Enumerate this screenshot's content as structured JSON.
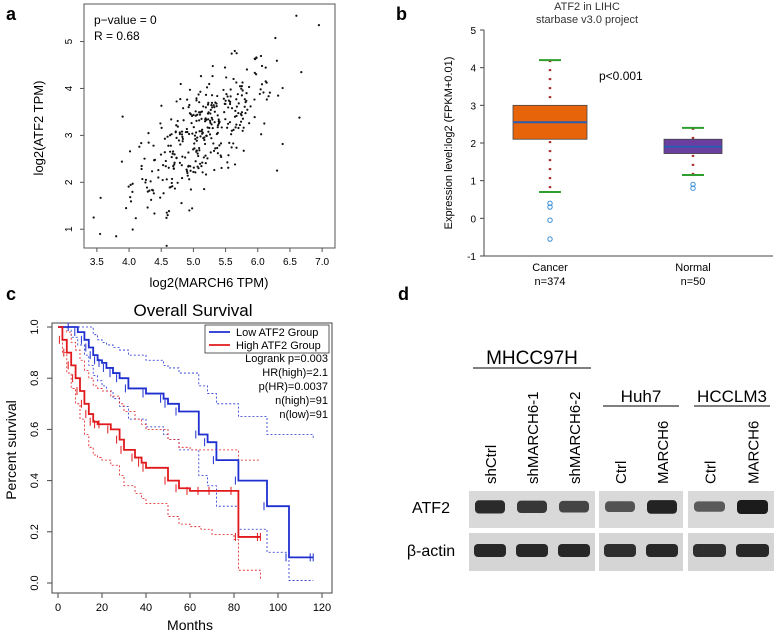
{
  "panels": {
    "a": {
      "letter": "a"
    },
    "b": {
      "letter": "b"
    },
    "c": {
      "letter": "c"
    },
    "d": {
      "letter": "d"
    }
  },
  "chart_data": [
    {
      "type": "scatter",
      "id": "a",
      "xlabel": "log2(MARCH6 TPM)",
      "ylabel": "log2(ATF2 TPM)",
      "xlim": [
        3.3,
        7.2
      ],
      "ylim": [
        0.6,
        5.8
      ],
      "xticks": [
        "3.5",
        "4.0",
        "4.5",
        "5.0",
        "5.5",
        "6.0",
        "6.5",
        "7.0"
      ],
      "yticks": [
        "1",
        "2",
        "3",
        "4",
        "5"
      ],
      "annotations": [
        "p−value = 0",
        "R = 0.68"
      ],
      "n_points": 371,
      "correlation": 0.68,
      "x_mean": 5.15,
      "y_mean": 3.05,
      "outliers": [
        [
          3.45,
          1.25
        ],
        [
          3.55,
          0.9
        ],
        [
          3.8,
          0.85
        ],
        [
          6.6,
          5.55
        ],
        [
          6.95,
          5.35
        ],
        [
          3.9,
          3.4
        ],
        [
          4.6,
          1.3
        ],
        [
          6.3,
          2.25
        ]
      ]
    },
    {
      "type": "box",
      "id": "b",
      "title": "ATF2 in LIHC",
      "subtitle": "starbase v3.0 project",
      "ylabel": "Expression level:log2 (FPKM+0.01)",
      "ylim": [
        -1,
        5
      ],
      "yticks": [
        "-1",
        "0",
        "1",
        "2",
        "3",
        "4",
        "5"
      ],
      "annotation": "p<0.001",
      "groups": [
        {
          "name": "Cancer",
          "n_label": "n=374",
          "whisker_low": 0.7,
          "q1": 2.1,
          "median": 2.55,
          "q3": 3.0,
          "whisker_high": 4.2,
          "outliers": [
            0.4,
            0.3,
            -0.05,
            -0.55
          ],
          "color": "#e8640b"
        },
        {
          "name": "Normal",
          "n_label": "n=50",
          "whisker_low": 1.15,
          "q1": 1.72,
          "median": 1.9,
          "q3": 2.1,
          "whisker_high": 2.4,
          "outliers": [
            0.9,
            0.8
          ],
          "color": "#6a3fa0"
        }
      ]
    },
    {
      "type": "line",
      "id": "c",
      "title": "Overall Survival",
      "xlabel": "Months",
      "ylabel": "Percent survival",
      "xlim": [
        0,
        120
      ],
      "ylim": [
        0,
        1.0
      ],
      "xticks": [
        "0",
        "20",
        "40",
        "60",
        "80",
        "100",
        "120"
      ],
      "yticks": [
        "0.0",
        "0.2",
        "0.4",
        "0.6",
        "0.8",
        "1.0"
      ],
      "legend_position": "top-right",
      "legend_stats": [
        "Logrank p=0.003",
        "HR(high)=2.1",
        "p(HR)=0.0037",
        "n(high)=91",
        "n(low)=91"
      ],
      "series": [
        {
          "name": "Low ATF2 Group",
          "color": "#1f2fd0",
          "x": [
            0,
            6,
            9,
            12,
            14,
            16,
            18,
            20,
            22,
            25,
            28,
            32,
            40,
            48,
            50,
            55,
            64,
            68,
            72,
            82,
            95,
            105,
            116
          ],
          "y": [
            1.0,
            1.0,
            0.98,
            0.95,
            0.92,
            0.89,
            0.87,
            0.86,
            0.84,
            0.82,
            0.8,
            0.76,
            0.74,
            0.72,
            0.7,
            0.67,
            0.58,
            0.55,
            0.48,
            0.4,
            0.3,
            0.1,
            0.1
          ],
          "ci_upper": [
            1.0,
            1.0,
            1.0,
            1.0,
            1.0,
            0.97,
            0.95,
            0.94,
            0.93,
            0.92,
            0.91,
            0.89,
            0.87,
            0.85,
            0.84,
            0.82,
            0.77,
            0.74,
            0.7,
            0.65,
            0.58,
            0.58,
            0.56
          ],
          "ci_lower": [
            1.0,
            0.96,
            0.93,
            0.89,
            0.85,
            0.81,
            0.79,
            0.77,
            0.75,
            0.72,
            0.69,
            0.64,
            0.61,
            0.58,
            0.56,
            0.52,
            0.42,
            0.38,
            0.3,
            0.21,
            0.12,
            0.01,
            0.01
          ]
        },
        {
          "name": "High ATF2 Group",
          "color": "#e0191c",
          "x": [
            0,
            2,
            4,
            6,
            8,
            10,
            12,
            14,
            16,
            18,
            20,
            24,
            28,
            30,
            35,
            38,
            40,
            50,
            55,
            60,
            65,
            70,
            80,
            82,
            92
          ],
          "y": [
            1.0,
            0.95,
            0.9,
            0.85,
            0.8,
            0.75,
            0.7,
            0.66,
            0.63,
            0.62,
            0.62,
            0.6,
            0.56,
            0.52,
            0.49,
            0.47,
            0.45,
            0.4,
            0.37,
            0.36,
            0.36,
            0.36,
            0.36,
            0.18,
            0.18
          ],
          "ci_upper": [
            1.0,
            1.0,
            0.98,
            0.94,
            0.91,
            0.87,
            0.83,
            0.8,
            0.77,
            0.76,
            0.75,
            0.73,
            0.7,
            0.67,
            0.64,
            0.62,
            0.6,
            0.56,
            0.53,
            0.52,
            0.52,
            0.52,
            0.52,
            0.48,
            0.48
          ],
          "ci_lower": [
            1.0,
            0.9,
            0.82,
            0.76,
            0.7,
            0.64,
            0.58,
            0.53,
            0.5,
            0.49,
            0.48,
            0.46,
            0.42,
            0.38,
            0.35,
            0.33,
            0.31,
            0.26,
            0.23,
            0.22,
            0.21,
            0.19,
            0.17,
            0.05,
            0.01
          ]
        }
      ]
    },
    {
      "type": "table",
      "id": "d",
      "description": "Western blot",
      "row_labels": [
        "ATF2",
        "β-actin"
      ],
      "blocks": [
        {
          "name": "MHCC97H",
          "lanes": [
            "shCtrl",
            "shMARCH6-1",
            "shMARCH6-2"
          ],
          "atf2_intensity": [
            0.9,
            0.8,
            0.7
          ],
          "actin_intensity": [
            0.9,
            0.9,
            0.9
          ]
        },
        {
          "name": "Huh7",
          "lanes": [
            "Ctrl",
            "MARCH6"
          ],
          "atf2_intensity": [
            0.6,
            0.95
          ],
          "actin_intensity": [
            0.85,
            0.9
          ]
        },
        {
          "name": "HCCLM3",
          "lanes": [
            "Ctrl",
            "MARCH6"
          ],
          "atf2_intensity": [
            0.55,
            1.0
          ],
          "actin_intensity": [
            0.85,
            0.9
          ]
        }
      ]
    }
  ]
}
